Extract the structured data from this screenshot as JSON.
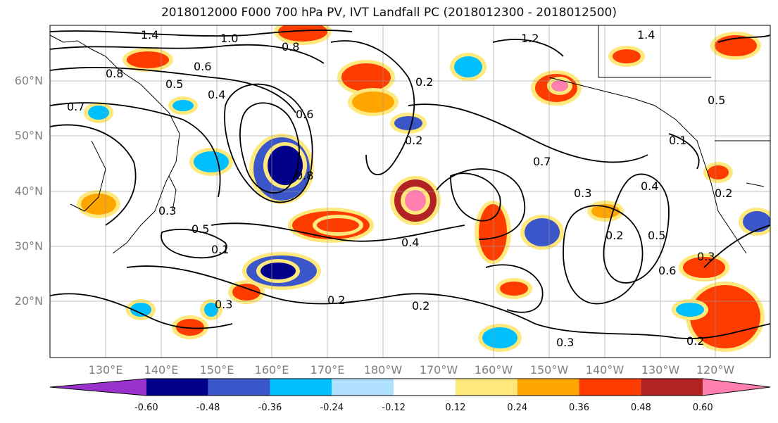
{
  "title": "2018012000 F000 700 hPa PV, IVT Landfall PC (2018012300 - 2018012500)",
  "lat_labels": [
    "60°N",
    "50°N",
    "40°N",
    "30°N",
    "20°N"
  ],
  "lon_labels": [
    "130°E",
    "140°E",
    "150°E",
    "160°E",
    "170°E",
    "180°W",
    "170°W",
    "160°W",
    "150°W",
    "140°W",
    "130°W",
    "120°W"
  ],
  "contour_labels": [
    "1.4",
    "1.0",
    "0.8",
    "0.8",
    "0.6",
    "0.5",
    "0.4",
    "0.7",
    "0.2",
    "0.3",
    "0.4",
    "0.5",
    "0.1",
    "0.8",
    "0.6",
    "0.3",
    "0.2",
    "0.3",
    "0.3",
    "0.2",
    "0.2",
    "0.2",
    "0.7",
    "0.2",
    "0.4",
    "0.5",
    "0.6",
    "0.3",
    "0.2",
    "1.2",
    "1.4",
    "0.5",
    "0.1"
  ],
  "colorbar": {
    "ticks": [
      "-0.60",
      "-0.48",
      "-0.36",
      "-0.24",
      "-0.12",
      "0.12",
      "0.24",
      "0.36",
      "0.48",
      "0.60"
    ],
    "colors": [
      "#9932cc",
      "#00008b",
      "#3a56c8",
      "#00bfff",
      "#b0e2ff",
      "#ffffff",
      "#ffe87c",
      "#ffa500",
      "#ff3c00",
      "#b22222",
      "#ff80b0"
    ]
  }
}
